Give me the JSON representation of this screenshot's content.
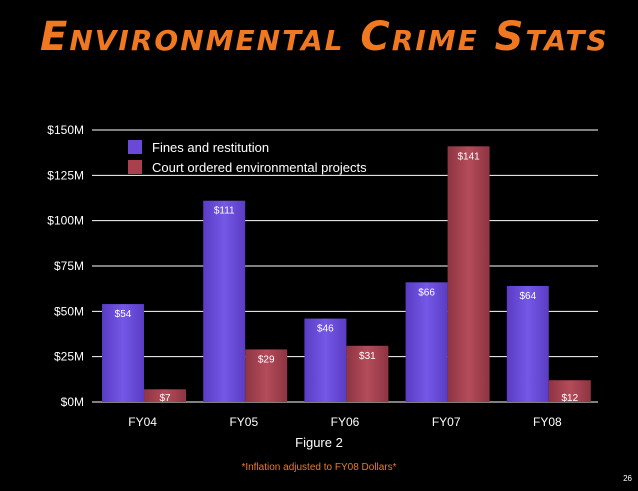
{
  "slide": {
    "title": "Environmental Crime Stats",
    "caption": "Figure 2",
    "footnote": "*Inflation adjusted to FY08 Dollars*",
    "page_number": "26"
  },
  "colors": {
    "background": "#000000",
    "title": "#f07820",
    "series_1": "#6a48d8",
    "series_2": "#a8404e",
    "grid": "#ffffff"
  },
  "chart_data": {
    "type": "bar",
    "categories": [
      "FY04",
      "FY05",
      "FY06",
      "FY07",
      "FY08"
    ],
    "series": [
      {
        "name": "Fines and restitution",
        "values": [
          54,
          111,
          46,
          66,
          64
        ],
        "labels": [
          "$54",
          "$111",
          "$46",
          "$66",
          "$64"
        ],
        "color": "#6a48d8"
      },
      {
        "name": "Court ordered environmental projects",
        "values": [
          7,
          29,
          31,
          141,
          12
        ],
        "labels": [
          "$7",
          "$29",
          "$31",
          "$141",
          "$12"
        ],
        "color": "#a8404e"
      }
    ],
    "y_ticks": [
      0,
      25,
      50,
      75,
      100,
      125,
      150
    ],
    "y_tick_labels": [
      "$0M",
      "$25M",
      "$50M",
      "$75M",
      "$100M",
      "$125M",
      "$150M"
    ],
    "ylim": [
      0,
      150
    ],
    "grid": true,
    "legend_position": "top-left"
  }
}
